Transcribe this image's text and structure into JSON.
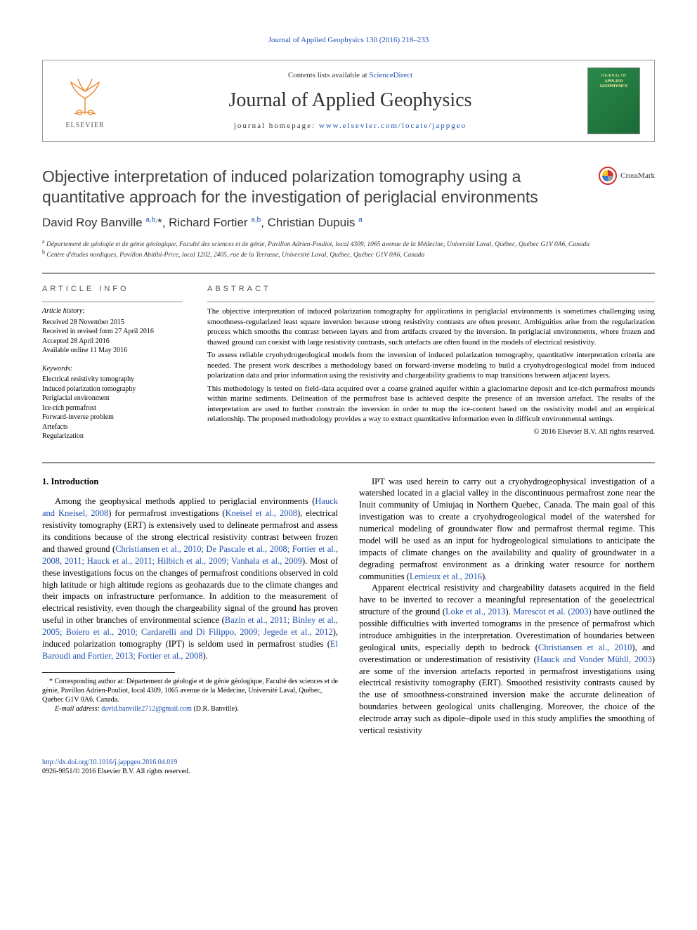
{
  "top_citation": {
    "text": "Journal of Applied Geophysics 130 (2016) 218–233",
    "link_color": "#1e4fb3"
  },
  "banner": {
    "contents_prefix": "Contents lists available at ",
    "contents_link": "ScienceDirect",
    "journal_name": "Journal of Applied Geophysics",
    "homepage_prefix": "journal homepage: ",
    "homepage_url": "www.elsevier.com/locate/jappgeo",
    "publisher_name": "ELSEVIER",
    "cover_line1": "JOURNAL OF",
    "cover_line2": "APPLIED",
    "cover_line3": "GEOPHYSICS"
  },
  "article": {
    "title": "Objective interpretation of induced polarization tomography using a quantitative approach for the investigation of periglacial environments",
    "crossmark_label": "CrossMark",
    "authors_html": "David Roy Banville <sup>a,b,</sup>*, Richard Fortier <sup>a,b</sup>, Christian Dupuis <sup>a</sup>",
    "affiliations": {
      "a": "Département de géologie et de génie géologique, Faculté des sciences et de génie, Pavillon Adrien-Pouliot, local 4309, 1065 avenue de la Médecine, Université Laval, Québec, Québec G1V 0A6, Canada",
      "b": "Centre d'études nordiques, Pavillon Abitibi-Price, local 1202, 2405, rue de la Terrasse, Université Laval, Québec, Québec G1V 0A6, Canada"
    }
  },
  "article_info": {
    "heading": "article info",
    "history_label": "Article history:",
    "history": [
      "Received 28 November 2015",
      "Received in revised form 27 April 2016",
      "Accepted 28 April 2016",
      "Available online 11 May 2016"
    ],
    "keywords_label": "Keywords:",
    "keywords": [
      "Electrical resistivity tomography",
      "Induced polarization tomography",
      "Periglacial environment",
      "Ice-rich permafrost",
      "Forward-inverse problem",
      "Artefacts",
      "Regularization"
    ]
  },
  "abstract": {
    "heading": "abstract",
    "paragraphs": [
      "The objective interpretation of induced polarization tomography for applications in periglacial environments is sometimes challenging using smoothness-regularized least square inversion because strong resistivity contrasts are often present. Ambiguities arise from the regularization process which smooths the contrast between layers and from artifacts created by the inversion. In periglacial environments, where frozen and thawed ground can coexist with large resistivity contrasts, such artefacts are often found in the models of electrical resistivity.",
      "To assess reliable cryohydrogeological models from the inversion of induced polarization tomography, quantitative interpretation criteria are needed. The present work describes a methodology based on forward-inverse modeling to build a cryohydrogeological model from induced polarization data and prior information using the resistivity and chargeability gradients to map transitions between adjacent layers.",
      "This methodology is tested on field-data acquired over a coarse grained aquifer within a glaciomarine deposit and ice-rich permafrost mounds within marine sediments. Delineation of the permafrost base is achieved despite the presence of an inversion artefact. The results of the interpretation are used to further constrain the inversion in order to map the ice-content based on the resistivity model and an empirical relationship. The proposed methodology provides a way to extract quantitative information even in difficult environmental settings."
    ],
    "copyright": "© 2016 Elsevier B.V. All rights reserved."
  },
  "body": {
    "section_heading": "1. Introduction",
    "p1_pre": "Among the geophysical methods applied to periglacial environments (",
    "p1_ref1": "Hauck and Kneisel, 2008",
    "p1_mid1": ") for permafrost investigations (",
    "p1_ref2": "Kneisel et al., 2008",
    "p1_mid2": "), electrical resistivity tomography (ERT) is extensively used to delineate permafrost and assess its conditions because of the strong electrical resistivity contrast between frozen and thawed ground (",
    "p1_ref3": "Christiansen et al., 2010; De Pascale et al., 2008; Fortier et al., 2008, 2011; Hauck et al., 2011; Hilbich et al., 2009; Vanhala et al., 2009",
    "p1_mid3": "). Most of these investigations focus on the changes of permafrost conditions observed in cold high latitude or high altitude regions as geohazards due to the climate changes and their impacts on infrastructure performance. In addition to the measurement of electrical resistivity, even though the chargeability signal of the ground has proven useful in other branches of environmental science (",
    "p1_ref4": "Bazin et al., 2011; Binley et al., 2005; Boiero et al., 2010; Cardarelli and Di Filippo, 2009; Jegede et al., 2012",
    "p1_mid4": "), induced polarization tomography (IPT) is seldom used in permafrost studies (",
    "p1_ref5": "El Baroudi and Fortier, 2013; Fortier et al., 2008",
    "p1_end": ").",
    "p2_pre": "IPT was used herein to carry out a cryohydrogeophysical investigation of a watershed located in a glacial valley in the discontinuous permafrost zone near the Inuit community of Umiujaq in Northern Quebec, Canada. The main goal of this investigation was to create a cryohydrogeological model of the watershed for numerical modeling of groundwater flow and permafrost thermal regime. This model will be used as an input for hydrogeological simulations to anticipate the impacts of climate changes on the availability and quality of groundwater in a degrading permafrost environment as a drinking water resource for northern communities (",
    "p2_ref1": "Lemieux et al., 2016",
    "p2_end": ").",
    "p3_pre": "Apparent electrical resistivity and chargeability datasets acquired in the field have to be inverted to recover a meaningful representation of the geoelectrical structure of the ground (",
    "p3_ref1": "Loke et al., 2013",
    "p3_mid1": "). ",
    "p3_ref2": "Marescot et al. (2003)",
    "p3_mid2": " have outlined the possible difficulties with inverted tomograms in the presence of permafrost which introduce ambiguities in the interpretation. Overestimation of boundaries between geological units, especially depth to bedrock (",
    "p3_ref3": "Christiansen et al., 2010",
    "p3_mid3": "), and overestimation or underestimation of resistivity (",
    "p3_ref4": "Hauck and Vonder Mühll, 2003",
    "p3_end": ") are some of the inversion artefacts reported in permafrost investigations using electrical resistivity tomography (ERT). Smoothed resistivity contrasts caused by the use of smoothness-constrained inversion make the accurate delineation of boundaries between geological units challenging. Moreover, the choice of the electrode array such as dipole–dipole used in this study amplifies the smoothing of vertical resistivity"
  },
  "footnote": {
    "corr_marker": "*",
    "corr_text": " Corresponding author at: Département de géologie et de génie géologique, Faculté des sciences et de génie, Pavillon Adrien-Pouliot, local 4309, 1065 avenue de la Médecine, Université Laval, Québec, Québec G1V 0A6, Canada.",
    "email_label": "E-mail address: ",
    "email": "david.banville2712@gmail.com",
    "email_attrib": " (D.R. Banville)."
  },
  "footer": {
    "doi": "http://dx.doi.org/10.1016/j.jappgeo.2016.04.019",
    "issn_line": "0926-9851/© 2016 Elsevier B.V. All rights reserved."
  },
  "colors": {
    "link": "#1e4fb3",
    "text": "#000000",
    "heading_gray": "#424242",
    "cover_green_start": "#2a8a4a",
    "cover_green_end": "#1a6a35",
    "elsevier_orange": "#ef7d1d",
    "crossmark_red": "#d22f2f",
    "crossmark_yellow": "#f5c518",
    "crossmark_blue": "#3a7acb",
    "crossmark_gray": "#9a9a9a"
  }
}
